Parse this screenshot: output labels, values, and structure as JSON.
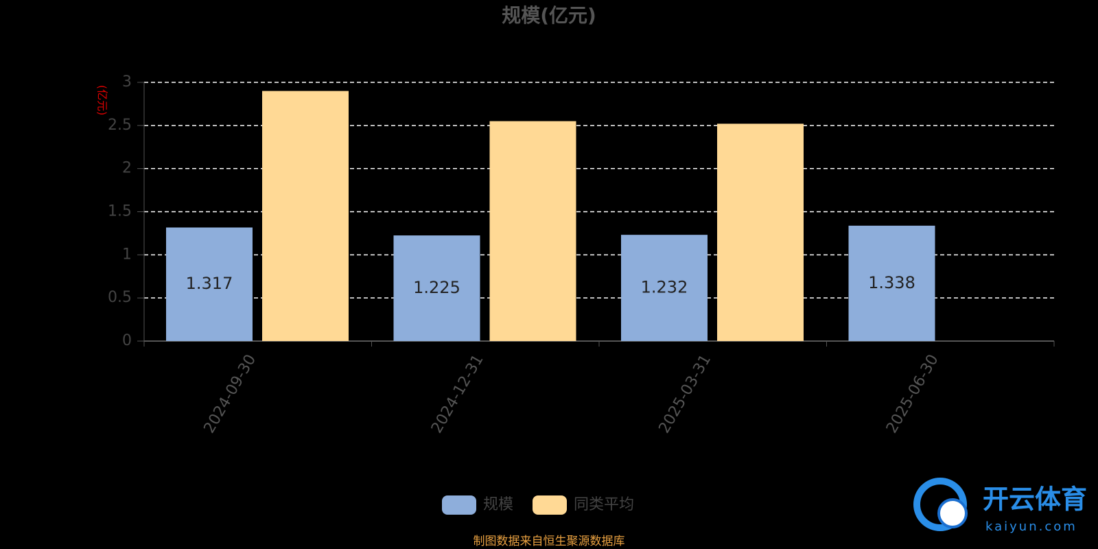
{
  "chart_data": {
    "type": "bar",
    "title": "规模(亿元)",
    "y_label": "(亿元)",
    "categories": [
      "2024-09-30",
      "2024-12-31",
      "2025-03-31",
      "2025-06-30"
    ],
    "series": [
      {
        "name": "规模",
        "color": "#8eaedb",
        "values": [
          1.317,
          1.225,
          1.232,
          1.338
        ],
        "show_labels": true
      },
      {
        "name": "同类平均",
        "color": "#ffd995",
        "values": [
          2.9,
          2.55,
          2.52,
          null
        ],
        "show_labels": false
      }
    ],
    "ylim": [
      0,
      3
    ],
    "yticks": [
      0,
      0.5,
      1,
      1.5,
      2,
      2.5,
      3
    ],
    "grid": true,
    "legend": "bottom",
    "source": "制图数据来自恒生聚源数据库"
  },
  "watermark": {
    "title": "开云体育",
    "url": "kaiyun.com"
  }
}
